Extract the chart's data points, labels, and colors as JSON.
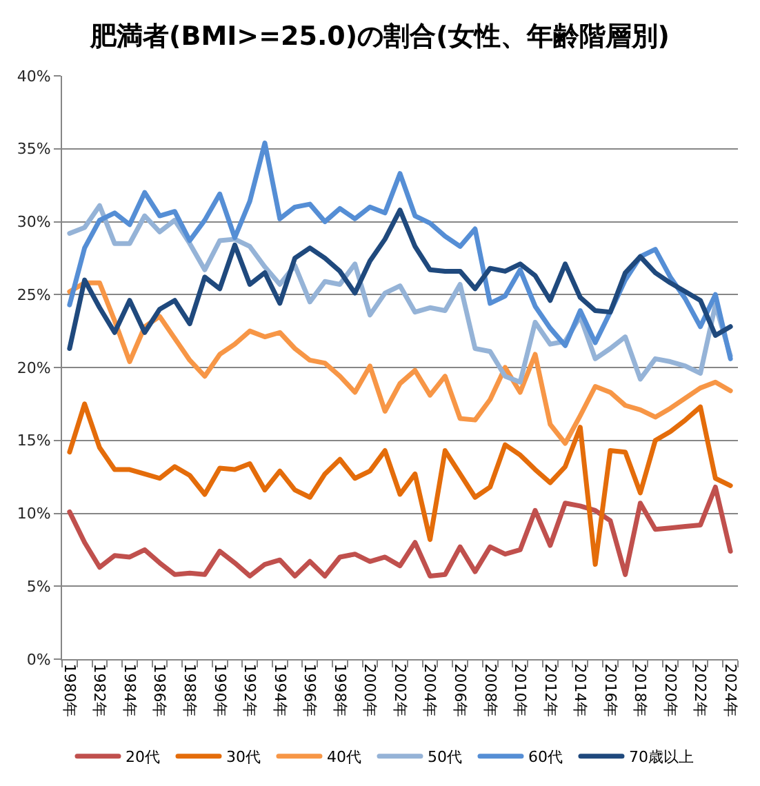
{
  "chart_data": {
    "type": "line",
    "title": "肥満者(BMI>=25.0)の割合(女性、年齢階層別)",
    "categories": [
      "1980年",
      null,
      "1982年",
      null,
      "1984年",
      null,
      "1986年",
      null,
      "1988年",
      null,
      "1990年",
      null,
      "1992年",
      null,
      "1994年",
      null,
      "1996年",
      null,
      "1998年",
      null,
      "2000年",
      null,
      "2002年",
      null,
      "2004年",
      null,
      "2006年",
      null,
      "2008年",
      null,
      "2010年",
      null,
      "2012年",
      null,
      "2014年",
      null,
      "2016年",
      null,
      "2018年",
      null,
      "2020年",
      null,
      "2022年",
      null,
      "2024年"
    ],
    "series": [
      {
        "name": "20代",
        "color": "#c0504d",
        "values": [
          10.1,
          8.0,
          6.3,
          7.1,
          7.0,
          7.5,
          6.6,
          5.8,
          5.9,
          5.8,
          7.4,
          6.6,
          5.7,
          6.5,
          6.8,
          5.7,
          6.7,
          5.7,
          7.0,
          7.2,
          6.7,
          7.0,
          6.4,
          8.0,
          5.7,
          5.8,
          7.7,
          6.0,
          7.7,
          7.2,
          7.5,
          10.2,
          7.8,
          10.7,
          10.5,
          10.2,
          9.5,
          5.8,
          10.7,
          8.9,
          9.0,
          9.1,
          9.2,
          11.8,
          7.4
        ]
      },
      {
        "name": "30代",
        "color": "#e46c0a",
        "values": [
          14.2,
          17.5,
          14.5,
          13.0,
          13.0,
          12.7,
          12.4,
          13.2,
          12.6,
          11.3,
          13.1,
          13.0,
          13.4,
          11.6,
          12.9,
          11.6,
          11.1,
          12.7,
          13.7,
          12.4,
          12.9,
          14.3,
          11.3,
          12.7,
          8.2,
          14.3,
          12.7,
          11.1,
          11.8,
          14.7,
          14.0,
          13.0,
          12.1,
          13.2,
          15.9,
          6.5,
          14.3,
          14.2,
          11.4,
          15.0,
          15.6,
          16.4,
          17.3,
          12.4,
          11.9
        ]
      },
      {
        "name": "40代",
        "color": "#f79646",
        "values": [
          25.2,
          25.8,
          25.8,
          23.2,
          20.4,
          22.8,
          23.5,
          22.0,
          20.5,
          19.4,
          20.9,
          21.6,
          22.5,
          22.1,
          22.4,
          21.3,
          20.5,
          20.3,
          19.4,
          18.3,
          20.1,
          17.0,
          18.9,
          19.8,
          18.1,
          19.4,
          16.5,
          16.4,
          17.8,
          20.0,
          18.3,
          20.9,
          16.1,
          14.8,
          16.7,
          18.7,
          18.3,
          17.4,
          17.1,
          16.6,
          17.2,
          17.9,
          18.6,
          19.0,
          18.4
        ]
      },
      {
        "name": "50代",
        "color": "#95b3d7",
        "values": [
          29.2,
          29.6,
          31.1,
          28.5,
          28.5,
          30.4,
          29.3,
          30.1,
          28.5,
          26.7,
          28.7,
          28.8,
          28.3,
          26.9,
          25.7,
          27.0,
          24.5,
          25.9,
          25.7,
          27.1,
          23.6,
          25.1,
          25.6,
          23.8,
          24.1,
          23.9,
          25.7,
          21.3,
          21.1,
          19.4,
          19.0,
          23.1,
          21.6,
          21.8,
          23.5,
          20.6,
          21.3,
          22.1,
          19.2,
          20.6,
          20.4,
          20.1,
          19.6,
          24.3,
          20.8
        ]
      },
      {
        "name": "60代",
        "color": "#558ed5",
        "values": [
          24.3,
          28.2,
          30.1,
          30.6,
          29.8,
          32.0,
          30.4,
          30.7,
          28.7,
          30.1,
          31.9,
          28.9,
          31.4,
          35.4,
          30.2,
          31.0,
          31.2,
          30.0,
          30.9,
          30.2,
          31.0,
          30.6,
          33.3,
          30.4,
          29.9,
          29.0,
          28.3,
          29.5,
          24.4,
          24.9,
          26.7,
          24.2,
          22.7,
          21.5,
          23.9,
          21.7,
          23.8,
          26.0,
          27.6,
          28.1,
          26.2,
          24.7,
          22.8,
          25.0,
          20.6
        ]
      },
      {
        "name": "70歳以上",
        "color": "#1f497d",
        "values": [
          21.3,
          26.0,
          24.1,
          22.4,
          24.6,
          22.4,
          24.0,
          24.6,
          23.0,
          26.2,
          25.4,
          28.4,
          25.7,
          26.5,
          24.4,
          27.5,
          28.2,
          27.5,
          26.6,
          25.1,
          27.3,
          28.8,
          30.8,
          28.3,
          26.7,
          26.6,
          26.6,
          25.4,
          26.8,
          26.6,
          27.1,
          26.3,
          24.6,
          27.1,
          24.8,
          23.9,
          23.8,
          26.5,
          27.6,
          26.5,
          25.8,
          25.2,
          24.6,
          22.2,
          22.8
        ]
      }
    ],
    "ylim": [
      0,
      40
    ],
    "yticks": [
      {
        "value": 0,
        "label": "0%"
      },
      {
        "value": 5,
        "label": "5%"
      },
      {
        "value": 10,
        "label": "10%"
      },
      {
        "value": 15,
        "label": "15%"
      },
      {
        "value": 20,
        "label": "20%"
      },
      {
        "value": 25,
        "label": "25%"
      },
      {
        "value": 30,
        "label": "30%"
      },
      {
        "value": 35,
        "label": "35%"
      },
      {
        "value": 40,
        "label": "40%"
      }
    ],
    "grid": "y",
    "legend": "bottom",
    "line_style": "solid"
  }
}
